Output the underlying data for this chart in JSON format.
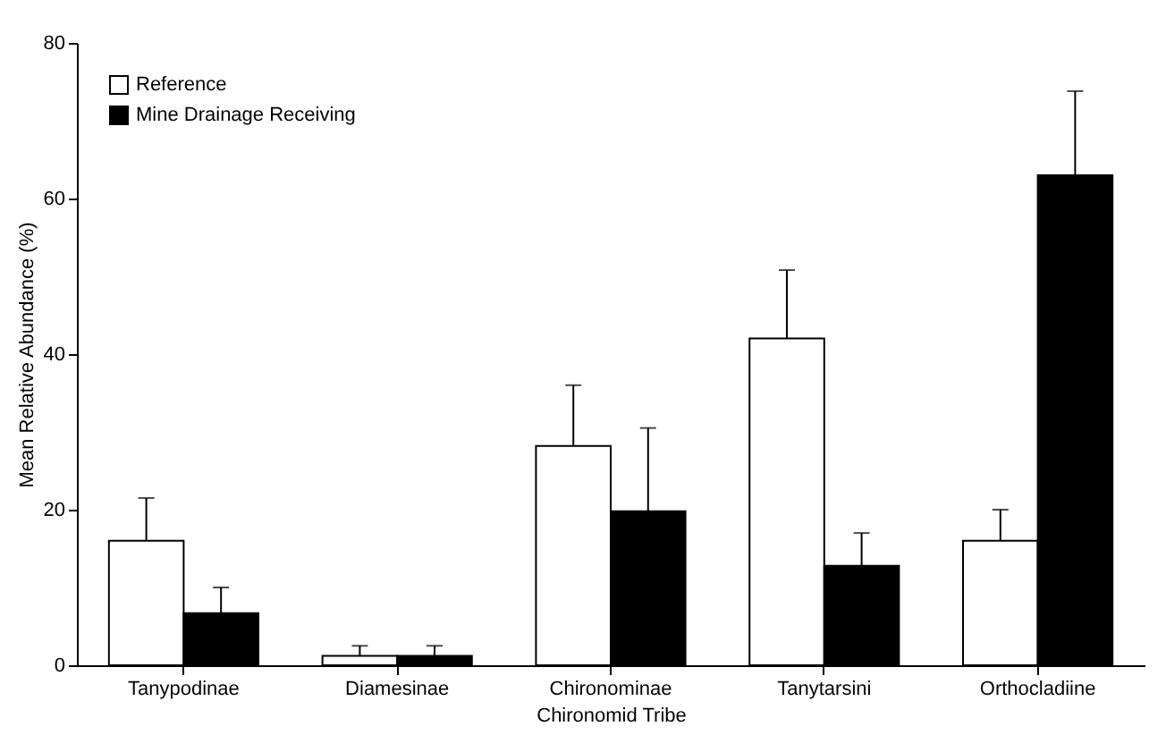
{
  "chart_data": {
    "type": "bar",
    "xlabel": "Chironomid Tribe",
    "ylabel": "Mean Relative Abundance (%)",
    "categories": [
      "Tanypodinae",
      "Diamesinae",
      "Chironominae",
      "Tanytarsini",
      "Orthocladiine"
    ],
    "series": [
      {
        "name": "Reference",
        "color": "#ffffff",
        "values": [
          16,
          1.2,
          28.2,
          42,
          16
        ],
        "errors": [
          [
            16,
            21.5
          ],
          [
            1.2,
            2.5
          ],
          [
            28.2,
            36
          ],
          [
            42,
            50.8
          ],
          [
            16,
            20
          ]
        ]
      },
      {
        "name": "Mine Drainage Receiving",
        "color": "#000000",
        "values": [
          6.7,
          1.2,
          19.8,
          12.8,
          63
        ],
        "errors": [
          [
            6.7,
            10
          ],
          [
            1.2,
            2.5
          ],
          [
            19.8,
            30.5
          ],
          [
            12.8,
            17
          ],
          [
            63,
            73.8
          ]
        ]
      }
    ],
    "ylim": [
      0,
      80
    ],
    "yticks": [
      0,
      20,
      40,
      60,
      80
    ],
    "grid": false,
    "legend": "top left"
  }
}
